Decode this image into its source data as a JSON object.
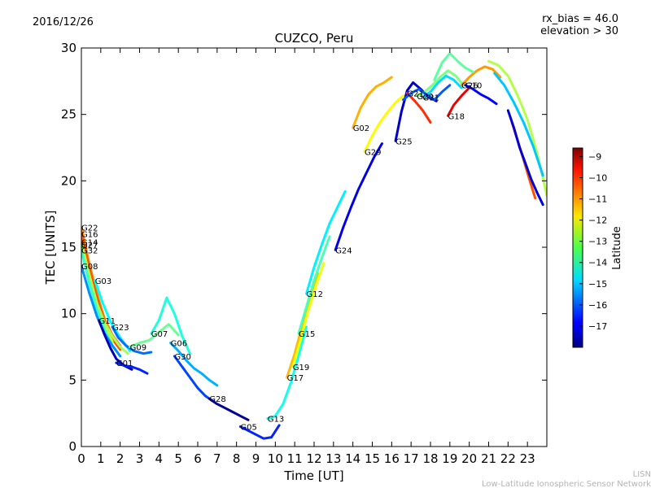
{
  "header": {
    "date": "2016/12/26",
    "rx_bias": "rx_bias = 46.0",
    "elevation": "elevation > 30"
  },
  "footer": {
    "line1": "LISN",
    "line2": "Low-Latitude Ionospheric Sensor Network"
  },
  "chart_data": {
    "type": "line",
    "title": "CUZCO, Peru",
    "xlabel": "Time [UT]",
    "ylabel": "TEC [UNITS]",
    "xlim": [
      0,
      24
    ],
    "ylim": [
      0,
      30
    ],
    "xticks": [
      0,
      1,
      2,
      3,
      4,
      5,
      6,
      7,
      8,
      9,
      10,
      11,
      12,
      13,
      14,
      15,
      16,
      17,
      18,
      19,
      20,
      21,
      22,
      23
    ],
    "yticks": [
      0,
      5,
      10,
      15,
      20,
      25,
      30
    ],
    "grid": false,
    "colorbar": {
      "label": "Latitude",
      "range": [
        -18,
        -8.6
      ],
      "ticks": [
        -9,
        -10,
        -11,
        -12,
        -13,
        -14,
        -15,
        -16,
        -17
      ],
      "colormap": "jet"
    },
    "series": [
      {
        "name": "G22",
        "lat": -11.0,
        "x": [
          0.0,
          0.4,
          0.8,
          1.2,
          1.6,
          2.0
        ],
        "y": [
          16.5,
          13.8,
          11.5,
          9.6,
          8.4,
          7.6
        ]
      },
      {
        "name": "G16",
        "lat": -10.5,
        "x": [
          0.0,
          0.4,
          0.8,
          1.2,
          1.6,
          2.0
        ],
        "y": [
          16.0,
          13.5,
          11.2,
          9.3,
          8.1,
          7.3
        ]
      },
      {
        "name": "G14",
        "lat": -12.5,
        "x": [
          0.0,
          0.4,
          0.8,
          1.2,
          1.6
        ],
        "y": [
          15.4,
          13.0,
          10.8,
          9.0,
          7.9
        ]
      },
      {
        "name": "G27",
        "lat": -13.0,
        "x": [
          0.0,
          0.4,
          0.8,
          1.2,
          1.6,
          2.0,
          2.4
        ],
        "y": [
          15.2,
          12.8,
          10.8,
          9.3,
          8.3,
          7.5,
          7.0
        ]
      },
      {
        "name": "G32",
        "lat": -14.0,
        "x": [
          0.0,
          0.4,
          0.8,
          1.2,
          1.6,
          2.0
        ],
        "y": [
          14.8,
          12.3,
          10.3,
          8.8,
          7.6,
          6.8
        ]
      },
      {
        "name": "G08",
        "lat": -15.5,
        "x": [
          0.0,
          0.4,
          0.8,
          1.2,
          1.6,
          2.0
        ],
        "y": [
          13.6,
          11.6,
          9.8,
          8.5,
          7.6,
          6.8
        ]
      },
      {
        "name": "G03",
        "lat": -14.5,
        "x": [
          0.7,
          1.1,
          1.5,
          2.0,
          2.5
        ],
        "y": [
          12.5,
          10.8,
          9.4,
          8.2,
          7.2
        ]
      },
      {
        "name": "G11",
        "lat": -17.5,
        "x": [
          0.9,
          1.2,
          1.5,
          1.8,
          2.2,
          2.6
        ],
        "y": [
          9.5,
          8.4,
          7.4,
          6.6,
          6.1,
          5.8
        ]
      },
      {
        "name": "G23",
        "lat": -15.8,
        "x": [
          1.6,
          1.9,
          2.3,
          2.7,
          3.2,
          3.6
        ],
        "y": [
          9.0,
          8.2,
          7.6,
          7.2,
          7.0,
          7.1
        ]
      },
      {
        "name": "G01",
        "lat": -16.5,
        "x": [
          1.8,
          2.2,
          2.6,
          3.0,
          3.4
        ],
        "y": [
          6.3,
          6.1,
          6.0,
          5.8,
          5.5
        ]
      },
      {
        "name": "G09",
        "lat": -13.5,
        "x": [
          2.5,
          3.0,
          3.5,
          4.0,
          4.5,
          5.0
        ],
        "y": [
          7.5,
          7.8,
          8.0,
          8.6,
          9.2,
          8.4
        ]
      },
      {
        "name": "G07",
        "lat": -14.2,
        "x": [
          3.6,
          4.0,
          4.4,
          4.8,
          5.2,
          5.6
        ],
        "y": [
          8.5,
          9.5,
          11.2,
          10.0,
          8.3,
          7.0
        ]
      },
      {
        "name": "G06",
        "lat": -15.2,
        "x": [
          4.6,
          5.0,
          5.4,
          5.8,
          6.2,
          6.6,
          7.0
        ],
        "y": [
          7.8,
          7.2,
          6.5,
          5.9,
          5.5,
          5.0,
          4.6
        ]
      },
      {
        "name": "G30",
        "lat": -16.2,
        "x": [
          4.8,
          5.2,
          5.6,
          6.0,
          6.4,
          6.8
        ],
        "y": [
          6.8,
          6.0,
          5.2,
          4.4,
          3.8,
          3.4
        ]
      },
      {
        "name": "G28",
        "lat": -17.8,
        "x": [
          6.6,
          7.0,
          7.4,
          7.8,
          8.2,
          8.6
        ],
        "y": [
          3.6,
          3.2,
          2.9,
          2.6,
          2.3,
          2.0
        ]
      },
      {
        "name": "G05",
        "lat": -16.5,
        "x": [
          8.2,
          8.6,
          9.0,
          9.4,
          9.8,
          10.2
        ],
        "y": [
          1.5,
          1.2,
          0.9,
          0.6,
          0.7,
          1.6
        ]
      },
      {
        "name": "G13",
        "lat": -14.3,
        "x": [
          9.6,
          10.0,
          10.4,
          10.8,
          11.2,
          11.6
        ],
        "y": [
          2.1,
          2.3,
          3.2,
          4.8,
          6.8,
          9.0
        ]
      },
      {
        "name": "G17",
        "lat": -11.5,
        "x": [
          10.6,
          11.0,
          11.4,
          11.8,
          12.2
        ],
        "y": [
          5.2,
          7.0,
          9.2,
          11.3,
          13.0
        ]
      },
      {
        "name": "G19",
        "lat": -12.3,
        "x": [
          10.9,
          11.3,
          11.7,
          12.1,
          12.5
        ],
        "y": [
          6.0,
          8.0,
          10.2,
          12.1,
          13.8
        ]
      },
      {
        "name": "G15",
        "lat": -13.8,
        "x": [
          11.2,
          11.6,
          12.0,
          12.4,
          12.8
        ],
        "y": [
          8.5,
          10.5,
          12.5,
          14.2,
          15.8
        ]
      },
      {
        "name": "G12",
        "lat": -14.6,
        "x": [
          11.6,
          12.0,
          12.4,
          12.8,
          13.2,
          13.6
        ],
        "y": [
          11.5,
          13.5,
          15.2,
          16.8,
          18.0,
          19.2
        ]
      },
      {
        "name": "G24",
        "lat": -17.0,
        "x": [
          13.1,
          13.5,
          13.9,
          14.3,
          14.7,
          15.1,
          15.5
        ],
        "y": [
          14.8,
          16.5,
          18.0,
          19.4,
          20.6,
          21.8,
          22.8
        ]
      },
      {
        "name": "G02",
        "lat": -11.4,
        "x": [
          14.0,
          14.4,
          14.8,
          15.2,
          15.6,
          16.0
        ],
        "y": [
          24.0,
          25.5,
          26.5,
          27.1,
          27.4,
          27.8
        ]
      },
      {
        "name": "G29",
        "lat": -12.1,
        "x": [
          14.6,
          15.0,
          15.4,
          15.8,
          16.2,
          16.6
        ],
        "y": [
          22.2,
          23.4,
          24.4,
          25.2,
          25.9,
          26.4
        ]
      },
      {
        "name": "G25",
        "lat": -17.3,
        "x": [
          16.2,
          16.5,
          16.8,
          17.1,
          17.5,
          17.9,
          18.3
        ],
        "y": [
          23.0,
          25.2,
          26.8,
          27.4,
          26.9,
          26.3,
          26.0
        ]
      },
      {
        "name": "G21",
        "lat": -10.2,
        "x": [
          16.8,
          17.2,
          17.6,
          18.0
        ],
        "y": [
          26.6,
          26.0,
          25.3,
          24.4
        ]
      },
      {
        "name": "G20",
        "lat": -13.3,
        "x": [
          17.3,
          17.7,
          18.1,
          18.5,
          18.9,
          19.3,
          19.7
        ],
        "y": [
          26.4,
          26.7,
          27.2,
          27.8,
          28.3,
          27.9,
          27.2
        ]
      },
      {
        "name": "G31",
        "lat": -14.8,
        "x": [
          17.6,
          18.0,
          18.4,
          18.8,
          19.2,
          19.6
        ],
        "y": [
          26.3,
          26.7,
          27.4,
          27.9,
          27.6,
          27.0
        ]
      },
      {
        "name": "G18",
        "lat": -9.6,
        "x": [
          18.9,
          19.2,
          19.6,
          20.0
        ],
        "y": [
          24.9,
          25.7,
          26.4,
          27.0
        ]
      },
      {
        "name": "G26",
        "lat": -11.2,
        "x": [
          19.6,
          20.0,
          20.4,
          20.8,
          21.2,
          21.6
        ],
        "y": [
          27.2,
          27.8,
          28.3,
          28.6,
          28.4,
          27.8
        ]
      },
      {
        "name": "G10",
        "lat": -16.8,
        "x": [
          19.8,
          20.2,
          20.6,
          21.0,
          21.4
        ],
        "y": [
          27.2,
          26.9,
          26.5,
          26.2,
          25.8
        ]
      },
      {
        "name": "",
        "lat": -12.8,
        "x": [
          21.0,
          21.5,
          22.0,
          22.5,
          23.0,
          23.5,
          24.0
        ],
        "y": [
          29.0,
          28.7,
          27.9,
          26.4,
          24.6,
          22.1,
          18.9
        ]
      },
      {
        "name": "",
        "lat": -15.0,
        "x": [
          21.3,
          21.8,
          22.3,
          22.8,
          23.3,
          23.8
        ],
        "y": [
          28.1,
          27.2,
          25.9,
          24.4,
          22.6,
          20.4
        ]
      },
      {
        "name": "",
        "lat": -10.5,
        "x": [
          22.2,
          22.5,
          22.8,
          23.1,
          23.4
        ],
        "y": [
          24.4,
          23.0,
          21.6,
          20.1,
          18.7
        ]
      },
      {
        "name": "",
        "lat": -17.2,
        "x": [
          22.0,
          22.3,
          22.6,
          22.9,
          23.2,
          23.5,
          23.8
        ],
        "y": [
          25.3,
          24.0,
          22.5,
          21.3,
          20.1,
          19.1,
          18.2
        ]
      },
      {
        "name": "",
        "lat": -13.6,
        "x": [
          18.2,
          18.6,
          19.0,
          19.4,
          19.8,
          20.2
        ],
        "y": [
          27.6,
          28.9,
          29.6,
          29.0,
          28.5,
          28.2
        ]
      },
      {
        "name": "",
        "lat": -16.0,
        "x": [
          16.6,
          17.0,
          17.4,
          17.8,
          18.2,
          18.6,
          19.0
        ],
        "y": [
          26.1,
          26.6,
          26.9,
          26.5,
          26.1,
          26.7,
          27.2
        ]
      }
    ]
  }
}
